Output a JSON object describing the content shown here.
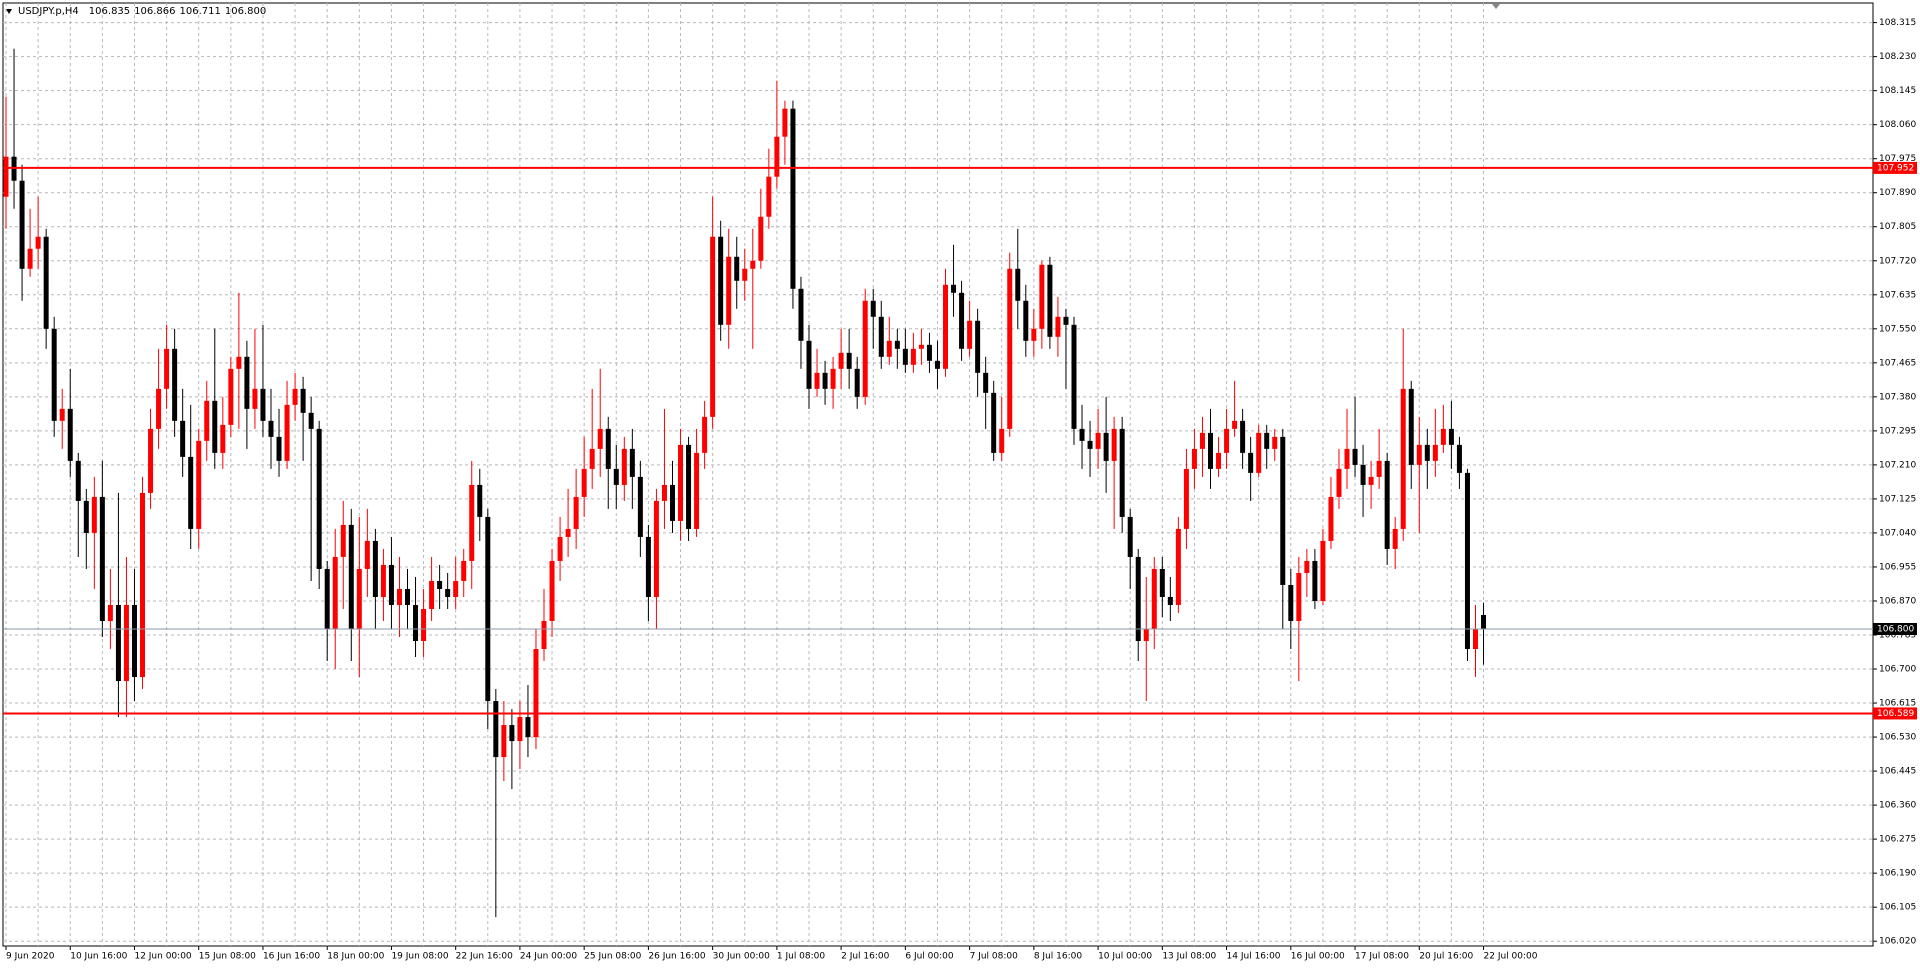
{
  "chart_data": {
    "type": "candlestick",
    "header": {
      "symbol": "USDJPY.p,H4",
      "ohlc": [
        "106.835",
        "106.866",
        "106.711",
        "106.800"
      ]
    },
    "up_color": "#ff0000",
    "down_color": "#000000",
    "grid": true,
    "categories": [
      "9 Jun 2020",
      null,
      null,
      null,
      null,
      null,
      null,
      null,
      "10 Jun 16:00",
      null,
      null,
      null,
      null,
      null,
      null,
      null,
      "12 Jun 00:00",
      null,
      null,
      null,
      null,
      null,
      null,
      null,
      "15 Jun 08:00",
      null,
      null,
      null,
      null,
      null,
      null,
      null,
      "16 Jun 16:00",
      null,
      null,
      null,
      null,
      null,
      null,
      null,
      "18 Jun 00:00",
      null,
      null,
      null,
      null,
      null,
      null,
      null,
      "19 Jun 08:00",
      null,
      null,
      null,
      null,
      null,
      null,
      null,
      "22 Jun 16:00",
      null,
      null,
      null,
      null,
      null,
      null,
      null,
      "24 Jun 00:00",
      null,
      null,
      null,
      null,
      null,
      null,
      null,
      "25 Jun 08:00",
      null,
      null,
      null,
      null,
      null,
      null,
      null,
      "26 Jun 16:00",
      null,
      null,
      null,
      null,
      null,
      null,
      null,
      "30 Jun 00:00",
      null,
      null,
      null,
      null,
      null,
      null,
      null,
      "1 Jul 08:00",
      null,
      null,
      null,
      null,
      null,
      null,
      null,
      "2 Jul 16:00",
      null,
      null,
      null,
      null,
      null,
      null,
      null,
      "6 Jul 00:00",
      null,
      null,
      null,
      null,
      null,
      null,
      null,
      "7 Jul 08:00",
      null,
      null,
      null,
      null,
      null,
      null,
      null,
      "8 Jul 16:00",
      null,
      null,
      null,
      null,
      null,
      null,
      null,
      "10 Jul 00:00",
      null,
      null,
      null,
      null,
      null,
      null,
      null,
      "13 Jul 08:00",
      null,
      null,
      null,
      null,
      null,
      null,
      null,
      "14 Jul 16:00",
      null,
      null,
      null,
      null,
      null,
      null,
      null,
      "16 Jul 00:00",
      null,
      null,
      null,
      null,
      null,
      null,
      null,
      "17 Jul 08:00",
      null,
      null,
      null,
      null,
      null,
      null,
      null,
      "20 Jul 16:00",
      null,
      null,
      null,
      null,
      null,
      null,
      null,
      "22 Jul 00:00"
    ],
    "open": [
      107.88,
      107.98,
      107.92,
      107.7,
      107.75,
      107.78,
      107.55,
      107.32,
      107.35,
      107.22,
      107.12,
      107.04,
      107.13,
      106.82,
      106.86,
      106.67,
      106.86,
      106.68,
      107.14,
      107.3,
      107.4,
      107.5,
      107.32,
      107.23,
      107.05,
      107.27,
      107.37,
      107.24,
      107.31,
      107.45,
      107.48,
      107.35,
      107.4,
      107.32,
      107.28,
      107.22,
      107.36,
      107.4,
      107.34,
      107.3,
      106.95,
      106.8,
      106.98,
      107.06,
      106.8,
      106.95,
      107.02,
      106.88,
      106.96,
      106.86,
      106.9,
      106.86,
      106.77,
      106.85,
      106.92,
      106.9,
      106.88,
      106.92,
      106.97,
      107.16,
      107.08,
      106.62,
      106.48,
      106.56,
      106.52,
      106.58,
      106.53,
      106.75,
      106.82,
      106.97,
      107.03,
      107.05,
      107.13,
      107.2,
      107.25,
      107.3,
      107.2,
      107.16,
      107.25,
      107.18,
      107.03,
      106.88,
      107.12,
      107.16,
      107.07,
      107.26,
      107.05,
      107.24,
      107.33,
      107.78,
      107.56,
      107.73,
      107.67,
      107.7,
      107.72,
      107.83,
      107.93,
      108.03,
      108.1,
      107.65,
      107.52,
      107.4,
      107.44,
      107.4,
      107.45,
      107.49,
      107.45,
      107.38,
      107.62,
      107.58,
      107.48,
      107.52,
      107.5,
      107.46,
      107.5,
      107.51,
      107.47,
      107.45,
      107.66,
      107.64,
      107.5,
      107.57,
      107.44,
      107.39,
      107.24,
      107.3,
      107.7,
      107.62,
      107.52,
      107.55,
      107.71,
      107.53,
      107.58,
      107.56,
      107.3,
      107.27,
      107.25,
      107.29,
      107.22,
      107.3,
      107.08,
      106.98,
      106.77,
      106.8,
      106.95,
      106.88,
      106.86,
      107.05,
      107.2,
      107.25,
      107.29,
      107.2,
      107.24,
      107.3,
      107.32,
      107.24,
      107.19,
      107.29,
      107.25,
      107.28,
      106.91,
      106.82,
      106.94,
      106.97,
      106.87,
      107.02,
      107.13,
      107.2,
      107.25,
      107.21,
      107.16,
      107.18,
      107.22,
      107.0,
      107.05,
      107.4,
      107.21,
      107.26,
      107.22,
      107.26,
      107.3,
      107.26,
      107.19,
      106.75,
      106.835
    ],
    "high": [
      108.13,
      108.25,
      107.96,
      107.85,
      107.88,
      107.8,
      107.58,
      107.4,
      107.45,
      107.24,
      107.15,
      107.18,
      107.22,
      106.95,
      107.14,
      106.98,
      106.95,
      107.18,
      107.35,
      107.5,
      107.56,
      107.55,
      107.4,
      107.36,
      107.3,
      107.42,
      107.55,
      107.38,
      107.48,
      107.64,
      107.52,
      107.55,
      107.56,
      107.4,
      107.35,
      107.42,
      107.44,
      107.43,
      107.38,
      107.32,
      106.97,
      107.05,
      107.12,
      107.1,
      107.08,
      107.1,
      107.05,
      107.0,
      107.03,
      106.98,
      106.95,
      106.93,
      106.9,
      106.98,
      106.96,
      106.94,
      106.98,
      107.0,
      107.22,
      107.2,
      107.1,
      106.65,
      106.62,
      106.6,
      106.62,
      106.66,
      106.8,
      106.9,
      107.0,
      107.08,
      107.15,
      107.2,
      107.28,
      107.4,
      107.45,
      107.33,
      107.26,
      107.28,
      107.3,
      107.22,
      107.06,
      107.15,
      107.35,
      107.22,
      107.3,
      107.28,
      107.3,
      107.37,
      107.88,
      107.82,
      107.8,
      107.78,
      107.75,
      107.8,
      107.9,
      108.0,
      108.17,
      108.12,
      108.12,
      107.68,
      107.56,
      107.5,
      107.47,
      107.48,
      107.55,
      107.55,
      107.48,
      107.65,
      107.65,
      107.62,
      107.58,
      107.55,
      107.55,
      107.54,
      107.55,
      107.54,
      107.52,
      107.7,
      107.76,
      107.67,
      107.62,
      107.6,
      107.48,
      107.42,
      107.38,
      107.74,
      107.8,
      107.66,
      107.6,
      107.72,
      107.73,
      107.63,
      107.6,
      107.58,
      107.36,
      107.32,
      107.35,
      107.38,
      107.33,
      107.33,
      107.1,
      107.0,
      106.93,
      106.98,
      106.98,
      106.93,
      107.08,
      107.25,
      107.3,
      107.33,
      107.35,
      107.28,
      107.35,
      107.42,
      107.35,
      107.28,
      107.31,
      107.31,
      107.3,
      107.3,
      106.95,
      106.98,
      107.0,
      107.0,
      107.05,
      107.18,
      107.25,
      107.35,
      107.38,
      107.26,
      107.22,
      107.3,
      107.24,
      107.08,
      107.55,
      107.42,
      107.33,
      107.3,
      107.35,
      107.36,
      107.37,
      107.28,
      107.2,
      106.86,
      106.866
    ],
    "low": [
      107.8,
      107.85,
      107.62,
      107.68,
      107.7,
      107.5,
      107.28,
      107.25,
      107.18,
      106.98,
      106.95,
      106.9,
      106.78,
      106.75,
      106.58,
      106.58,
      106.62,
      106.65,
      107.1,
      107.25,
      107.35,
      107.28,
      107.18,
      107.0,
      107.0,
      107.22,
      107.2,
      107.2,
      107.28,
      107.3,
      107.25,
      107.3,
      107.28,
      107.2,
      107.18,
      107.2,
      107.32,
      107.22,
      106.92,
      106.9,
      106.72,
      106.7,
      106.85,
      106.72,
      106.68,
      106.88,
      106.8,
      106.82,
      106.8,
      106.78,
      106.8,
      106.73,
      106.73,
      106.82,
      106.85,
      106.85,
      106.85,
      106.88,
      106.9,
      107.02,
      106.55,
      106.08,
      106.42,
      106.4,
      106.45,
      106.48,
      106.5,
      106.72,
      106.78,
      106.92,
      106.98,
      107.0,
      107.08,
      107.15,
      107.18,
      107.1,
      107.1,
      107.12,
      107.1,
      106.98,
      106.82,
      106.8,
      107.05,
      107.04,
      107.02,
      107.02,
      107.03,
      107.2,
      107.3,
      107.52,
      107.5,
      107.6,
      107.62,
      107.5,
      107.7,
      107.8,
      107.9,
      107.96,
      107.6,
      107.45,
      107.35,
      107.38,
      107.36,
      107.35,
      107.4,
      107.4,
      107.35,
      107.36,
      107.5,
      107.45,
      107.46,
      107.45,
      107.44,
      107.44,
      107.46,
      107.44,
      107.4,
      107.43,
      107.58,
      107.47,
      107.48,
      107.38,
      107.3,
      107.22,
      107.22,
      107.28,
      107.55,
      107.48,
      107.48,
      107.5,
      107.5,
      107.48,
      107.4,
      107.26,
      107.2,
      107.18,
      107.2,
      107.14,
      107.05,
      107.04,
      106.9,
      106.72,
      106.62,
      106.75,
      106.83,
      106.82,
      106.84,
      107.0,
      107.15,
      107.18,
      107.15,
      107.18,
      107.2,
      107.28,
      107.2,
      107.12,
      107.18,
      107.2,
      107.22,
      106.8,
      106.75,
      106.67,
      106.88,
      106.85,
      106.86,
      107.0,
      107.1,
      107.15,
      107.18,
      107.08,
      107.1,
      107.15,
      106.96,
      106.95,
      107.02,
      107.15,
      107.04,
      107.15,
      107.18,
      107.24,
      107.2,
      107.15,
      106.72,
      106.68,
      106.711
    ],
    "close": [
      107.98,
      107.92,
      107.7,
      107.75,
      107.78,
      107.55,
      107.32,
      107.35,
      107.22,
      107.12,
      107.04,
      107.13,
      106.82,
      106.86,
      106.67,
      106.86,
      106.68,
      107.14,
      107.3,
      107.4,
      107.5,
      107.32,
      107.23,
      107.05,
      107.27,
      107.37,
      107.24,
      107.31,
      107.45,
      107.48,
      107.35,
      107.4,
      107.32,
      107.28,
      107.22,
      107.36,
      107.4,
      107.34,
      107.3,
      106.95,
      106.8,
      106.98,
      107.06,
      106.8,
      106.95,
      107.02,
      106.88,
      106.96,
      106.86,
      106.9,
      106.86,
      106.77,
      106.85,
      106.92,
      106.9,
      106.88,
      106.92,
      106.97,
      107.16,
      107.08,
      106.62,
      106.48,
      106.56,
      106.52,
      106.58,
      106.53,
      106.75,
      106.82,
      106.97,
      107.03,
      107.05,
      107.13,
      107.2,
      107.25,
      107.3,
      107.2,
      107.16,
      107.25,
      107.18,
      107.03,
      106.88,
      107.12,
      107.16,
      107.07,
      107.26,
      107.05,
      107.24,
      107.33,
      107.78,
      107.56,
      107.73,
      107.67,
      107.7,
      107.72,
      107.83,
      107.93,
      108.03,
      108.1,
      107.65,
      107.52,
      107.4,
      107.44,
      107.4,
      107.45,
      107.49,
      107.45,
      107.38,
      107.62,
      107.58,
      107.48,
      107.52,
      107.5,
      107.46,
      107.5,
      107.51,
      107.47,
      107.45,
      107.66,
      107.64,
      107.5,
      107.57,
      107.44,
      107.39,
      107.24,
      107.3,
      107.7,
      107.62,
      107.52,
      107.55,
      107.71,
      107.53,
      107.58,
      107.56,
      107.3,
      107.27,
      107.25,
      107.29,
      107.22,
      107.3,
      107.08,
      106.98,
      106.77,
      106.8,
      106.95,
      106.88,
      106.86,
      107.05,
      107.2,
      107.25,
      107.29,
      107.2,
      107.24,
      107.3,
      107.32,
      107.24,
      107.19,
      107.29,
      107.25,
      107.28,
      106.91,
      106.82,
      106.94,
      106.97,
      106.87,
      107.02,
      107.13,
      107.2,
      107.25,
      107.21,
      107.16,
      107.18,
      107.22,
      107.0,
      107.05,
      107.4,
      107.21,
      107.26,
      107.22,
      107.26,
      107.3,
      107.26,
      107.19,
      106.75,
      106.8,
      106.8
    ],
    "ylim": [
      106.008,
      108.364
    ],
    "yticks": [
      108.315,
      {
        "value": 108.23,
        "label": "108.230"
      },
      108.145,
      {
        "value": 108.06,
        "label": "108.060"
      },
      107.975,
      {
        "value": 107.89,
        "label": "107.890"
      },
      107.805,
      {
        "value": 107.72,
        "label": "107.720"
      },
      107.635,
      {
        "value": 107.55,
        "label": "107.550"
      },
      107.465,
      {
        "value": 107.38,
        "label": "107.380"
      },
      107.295,
      {
        "value": 107.21,
        "label": "107.210"
      },
      107.125,
      {
        "value": 107.04,
        "label": "107.040"
      },
      106.955,
      {
        "value": 106.87,
        "label": "106.870"
      },
      106.785,
      {
        "value": 106.7,
        "label": "106.700"
      },
      106.615,
      {
        "value": 106.53,
        "label": "106.530"
      },
      106.445,
      {
        "value": 106.36,
        "label": "106.360"
      },
      106.275,
      {
        "value": 106.19,
        "label": "106.190"
      },
      106.105,
      {
        "value": 106.02,
        "label": "106.020"
      }
    ],
    "hlines": [
      {
        "value": 107.952,
        "label": "107.952",
        "color": "#ff0000",
        "label_bg": "#ff0000",
        "label_color": "#ffffff"
      },
      {
        "value": 106.589,
        "label": "106.589",
        "color": "#ff0000",
        "label_bg": "#ff0000",
        "label_color": "#ffffff"
      },
      {
        "value": 106.8,
        "label": "106.800",
        "color": "#8c9aa8",
        "label_bg": "#000000",
        "label_color": "#ffffff"
      }
    ]
  }
}
